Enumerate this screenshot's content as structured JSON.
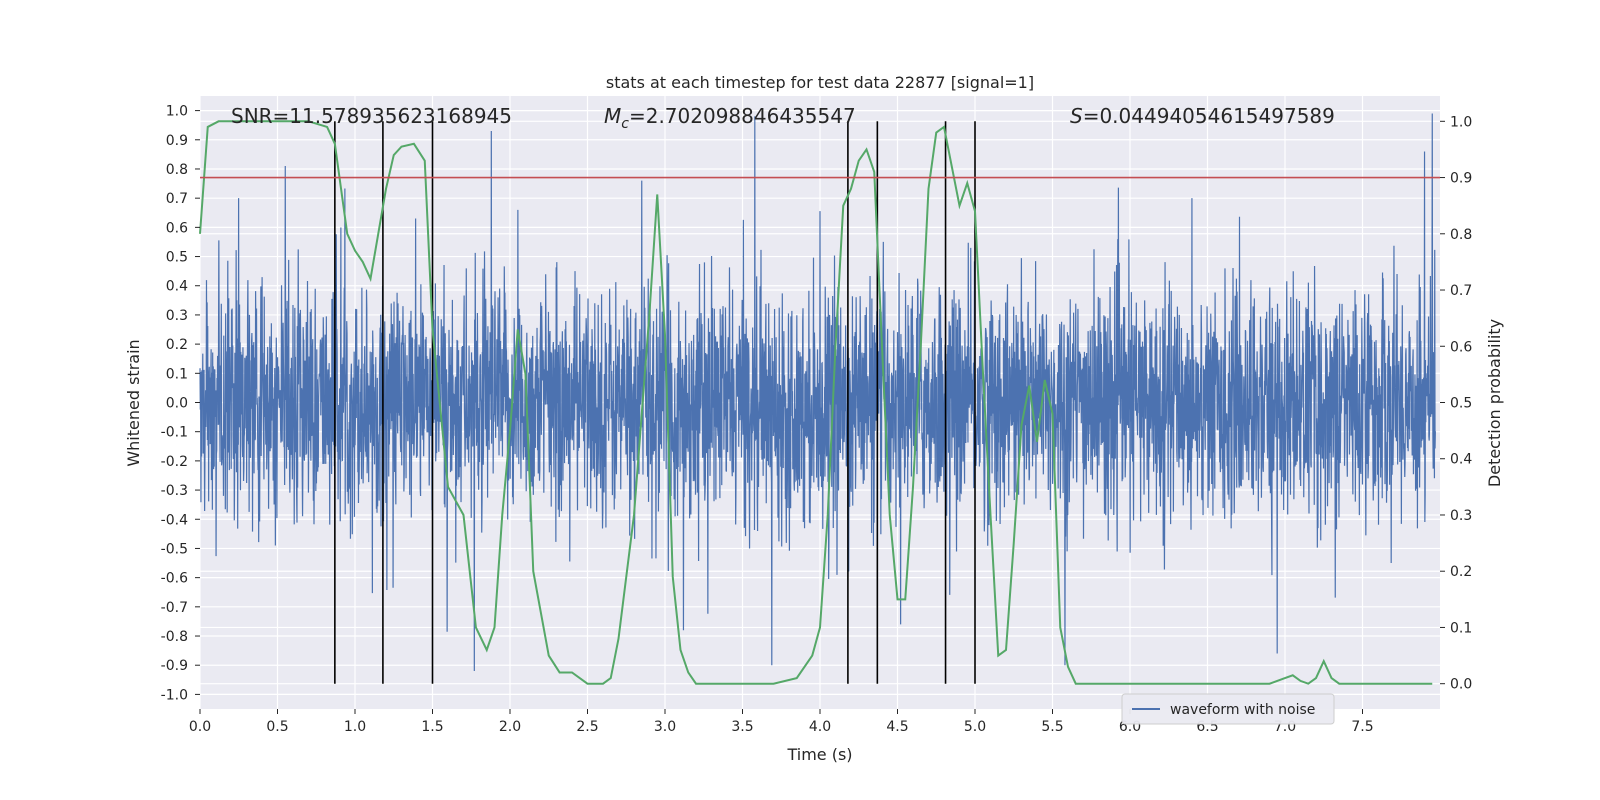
{
  "chart_data": {
    "type": "line",
    "title": "stats at each timestep for test data 22877 [signal=1]",
    "xlabel": "Time (s)",
    "ylabel_left": "Whitened strain",
    "ylabel_right": "Detection probability",
    "xlim": [
      0,
      8
    ],
    "ylim_left": [
      -1.05,
      1.05
    ],
    "ylim_right": [
      -0.045,
      1.045
    ],
    "x_ticks": [
      "0.0",
      "0.5",
      "1.0",
      "1.5",
      "2.0",
      "2.5",
      "3.0",
      "3.5",
      "4.0",
      "4.5",
      "5.0",
      "5.5",
      "6.0",
      "6.5",
      "7.0",
      "7.5"
    ],
    "y_ticks_left": [
      "1.0",
      "0.9",
      "0.8",
      "0.7",
      "0.6",
      "0.5",
      "0.4",
      "0.3",
      "0.2",
      "0.1",
      "0.0",
      "-0.1",
      "-0.2",
      "-0.3",
      "-0.4",
      "-0.5",
      "-0.6",
      "-0.7",
      "-0.8",
      "-0.9",
      "-1.0"
    ],
    "y_ticks_right": [
      "1.0",
      "0.9",
      "0.8",
      "0.7",
      "0.6",
      "0.5",
      "0.4",
      "0.3",
      "0.2",
      "0.1",
      "0.0"
    ],
    "grid": true,
    "legend_placement": "lower-right",
    "stats": {
      "snr": "SNR=11.578935623168945",
      "mc_symbol": "M",
      "mc_sub": "c",
      "mc_value": "=2.702098846435547",
      "s_symbol": "S",
      "s_value": "=0.04494054615497589"
    },
    "threshold_right": 0.9,
    "vertical_markers_x": [
      0.87,
      1.18,
      1.5,
      4.18,
      4.37,
      4.81,
      5.0
    ],
    "waveform": {
      "name": "waveform with noise",
      "color": "#4c72b0",
      "typical_amplitude": 0.35,
      "max_amplitude": 1.0,
      "peaks": [
        {
          "x": 0.55,
          "y": 0.81
        },
        {
          "x": 1.88,
          "y": 0.93
        },
        {
          "x": 1.77,
          "y": -0.92
        },
        {
          "x": 2.85,
          "y": 0.76
        },
        {
          "x": 3.58,
          "y": 0.98
        },
        {
          "x": 3.69,
          "y": -0.9
        },
        {
          "x": 4.52,
          "y": -0.76
        },
        {
          "x": 5.58,
          "y": -0.9
        },
        {
          "x": 6.95,
          "y": -0.86
        },
        {
          "x": 7.95,
          "y": 0.99
        },
        {
          "x": 7.9,
          "y": 0.86
        },
        {
          "x": 0.25,
          "y": 0.7
        },
        {
          "x": 2.05,
          "y": 0.66
        },
        {
          "x": 3.12,
          "y": -0.78
        },
        {
          "x": 6.4,
          "y": 0.7
        }
      ]
    },
    "probability": {
      "color": "#55a868",
      "x": [
        0.0,
        0.05,
        0.12,
        0.2,
        0.4,
        0.6,
        0.7,
        0.82,
        0.87,
        0.95,
        1.0,
        1.05,
        1.1,
        1.15,
        1.2,
        1.25,
        1.3,
        1.38,
        1.45,
        1.5,
        1.6,
        1.7,
        1.78,
        1.85,
        1.9,
        1.95,
        2.0,
        2.05,
        2.1,
        2.15,
        2.25,
        2.32,
        2.4,
        2.5,
        2.6,
        2.65,
        2.7,
        2.8,
        2.9,
        2.95,
        3.0,
        3.05,
        3.1,
        3.15,
        3.2,
        3.3,
        3.5,
        3.7,
        3.85,
        3.95,
        4.0,
        4.05,
        4.1,
        4.15,
        4.2,
        4.25,
        4.3,
        4.35,
        4.4,
        4.45,
        4.5,
        4.55,
        4.6,
        4.65,
        4.7,
        4.75,
        4.8,
        4.85,
        4.9,
        4.95,
        5.0,
        5.05,
        5.1,
        5.15,
        5.2,
        5.25,
        5.3,
        5.35,
        5.4,
        5.45,
        5.5,
        5.55,
        5.6,
        5.65,
        5.7,
        5.75,
        5.8,
        5.9,
        6.0,
        6.5,
        6.9,
        7.0,
        7.05,
        7.1,
        7.15,
        7.2,
        7.25,
        7.3,
        7.35,
        7.4,
        7.5,
        7.95
      ],
      "y": [
        0.8,
        0.99,
        1.0,
        1.0,
        1.0,
        1.0,
        1.0,
        0.99,
        0.96,
        0.8,
        0.77,
        0.75,
        0.72,
        0.8,
        0.88,
        0.94,
        0.955,
        0.96,
        0.93,
        0.63,
        0.35,
        0.3,
        0.1,
        0.06,
        0.1,
        0.3,
        0.45,
        0.63,
        0.55,
        0.2,
        0.05,
        0.02,
        0.02,
        0.0,
        0.0,
        0.01,
        0.08,
        0.3,
        0.66,
        0.87,
        0.62,
        0.19,
        0.06,
        0.02,
        0.0,
        0.0,
        0.0,
        0.0,
        0.01,
        0.05,
        0.1,
        0.3,
        0.6,
        0.85,
        0.88,
        0.93,
        0.95,
        0.91,
        0.6,
        0.3,
        0.15,
        0.15,
        0.35,
        0.6,
        0.88,
        0.98,
        0.99,
        0.92,
        0.85,
        0.89,
        0.84,
        0.56,
        0.3,
        0.05,
        0.06,
        0.25,
        0.46,
        0.53,
        0.43,
        0.54,
        0.48,
        0.1,
        0.03,
        0.0,
        0.0,
        0.0,
        0.0,
        0.0,
        0.0,
        0.0,
        0.0,
        0.01,
        0.015,
        0.005,
        0.0,
        0.01,
        0.04,
        0.01,
        0.0,
        0.0,
        0.0,
        0.0
      ]
    }
  }
}
